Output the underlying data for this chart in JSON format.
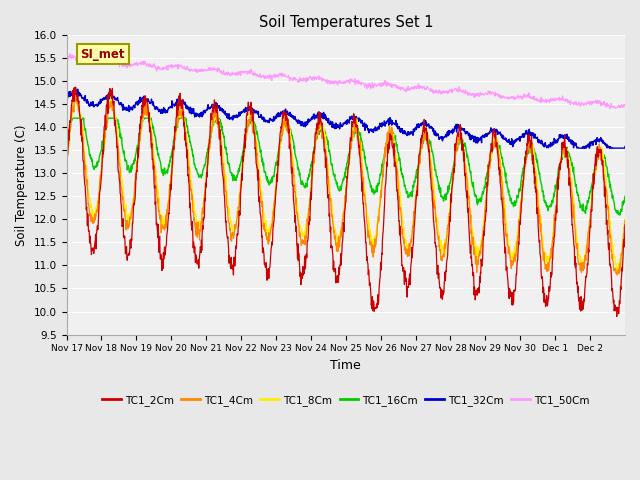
{
  "title": "Soil Temperatures Set 1",
  "xlabel": "Time",
  "ylabel": "Soil Temperature (C)",
  "ylim": [
    9.5,
    16.0
  ],
  "yticks": [
    9.5,
    10.0,
    10.5,
    11.0,
    11.5,
    12.0,
    12.5,
    13.0,
    13.5,
    14.0,
    14.5,
    15.0,
    15.5,
    16.0
  ],
  "colors": {
    "TC1_2Cm": "#cc0000",
    "TC1_4Cm": "#ff8800",
    "TC1_8Cm": "#ffee00",
    "TC1_16Cm": "#00cc00",
    "TC1_32Cm": "#0000cc",
    "TC1_50Cm": "#ff99ff"
  },
  "annotation_text": "SI_met",
  "annotation_color": "#990000",
  "annotation_bg": "#ffffaa",
  "annotation_border": "#999900",
  "background_color": "#e8e8e8",
  "plot_bg": "#f0f0f0",
  "n_points": 1500,
  "xtick_labels": [
    "Nov 17",
    "Nov 18",
    "Nov 19",
    "Nov 20",
    "Nov 21",
    "Nov 22",
    "Nov 23",
    "Nov 24",
    "Nov 25",
    "Nov 26",
    "Nov 27",
    "Nov 28",
    "Nov 29",
    "Nov 30",
    "Dec 1",
    "Dec 2"
  ]
}
